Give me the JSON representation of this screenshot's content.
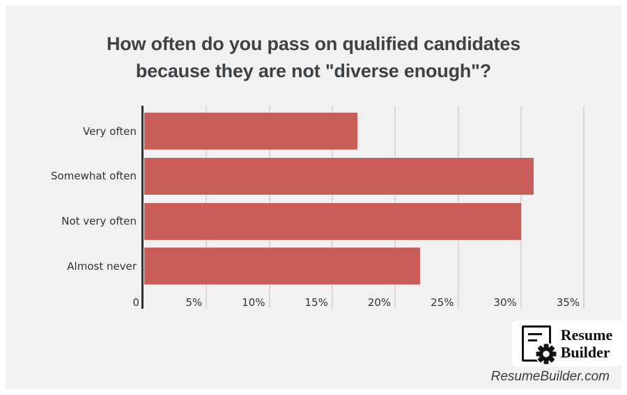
{
  "title": {
    "line1": "How often do you pass on qualified candidates",
    "line2": "because they are not \"diverse enough\"?"
  },
  "chart_data": {
    "type": "bar",
    "orientation": "horizontal",
    "title": "How often do you pass on qualified candidates because they are not \"diverse enough\"?",
    "categories": [
      "Very often",
      "Somewhat often",
      "Not very often",
      "Almost never"
    ],
    "values": [
      17,
      31,
      30,
      22
    ],
    "value_unit": "percent",
    "xlim": [
      0,
      35
    ],
    "x_tick_values": [
      0,
      5,
      10,
      15,
      20,
      25,
      30,
      35
    ],
    "x_tick_labels": [
      "0",
      "5%",
      "10%",
      "15%",
      "20%",
      "25%",
      "30%",
      "35%"
    ],
    "grid": "vertical",
    "legend": "none",
    "bar_color": "#c95d5a",
    "axis_color": "#2f2f2f",
    "gridline_color": "#d8d8d8",
    "label_color": "#333333",
    "background_color": "#f1f1f1"
  },
  "branding": {
    "logo_icon": "document-gear-icon",
    "logo_text_line1": "Resume",
    "logo_text_line2": "Builder",
    "website": "ResumeBuilder.com"
  }
}
